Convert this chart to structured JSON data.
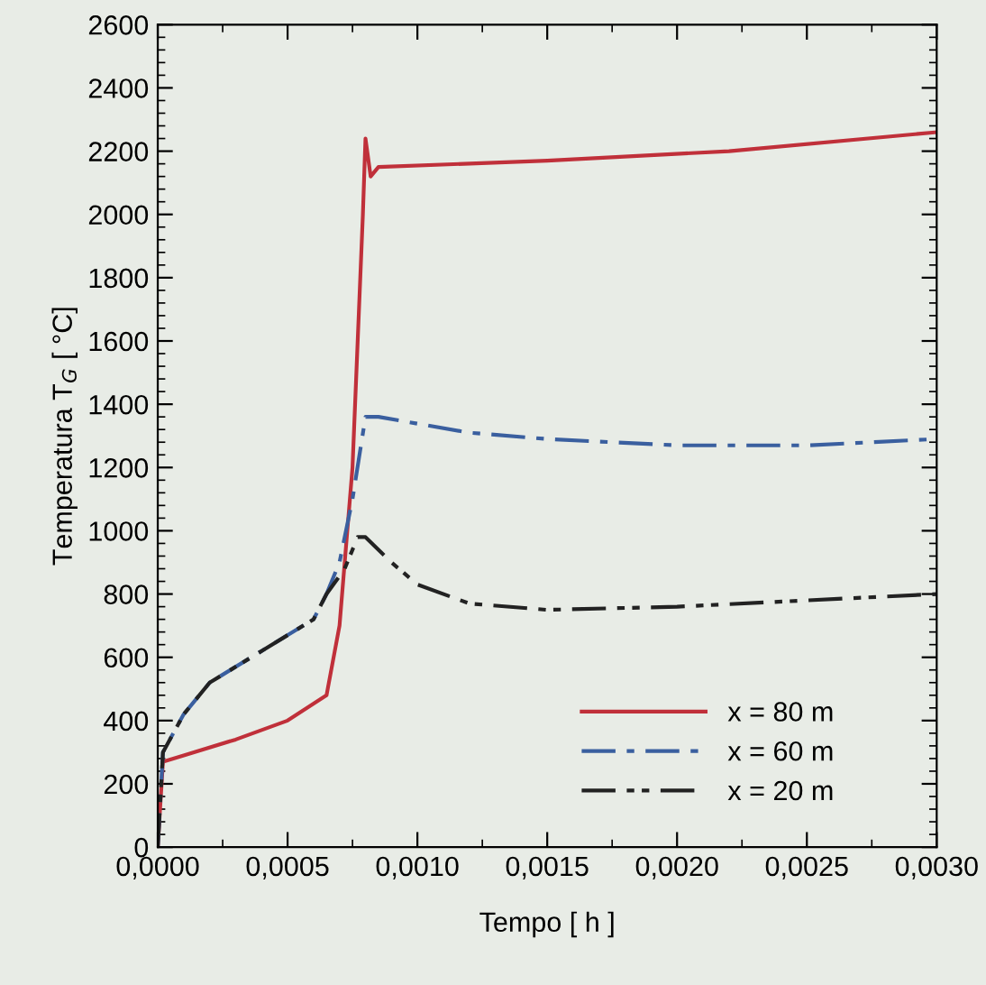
{
  "chart_data": {
    "type": "line",
    "xlabel": "Tempo [ h ]",
    "ylabel": "Temperatura T$_{G}$ [ °C]",
    "xlim": [
      0,
      0.003
    ],
    "ylim": [
      0,
      2600
    ],
    "xticks": [
      {
        "value": 0,
        "label": "0,0000"
      },
      {
        "value": 0.0005,
        "label": "0,0005"
      },
      {
        "value": 0.001,
        "label": "0,0010"
      },
      {
        "value": 0.0015,
        "label": "0,0015"
      },
      {
        "value": 0.002,
        "label": "0,0020"
      },
      {
        "value": 0.0025,
        "label": "0,0025"
      },
      {
        "value": 0.003,
        "label": "0,0030"
      }
    ],
    "yticks": [
      0,
      200,
      400,
      600,
      800,
      1000,
      1200,
      1400,
      1600,
      1800,
      2000,
      2200,
      2400,
      2600
    ],
    "grid": false,
    "legend": "bottom right",
    "marker": "none",
    "series": [
      {
        "name": "x = 80 m",
        "color": "#c0303a",
        "line_style": "solid",
        "x": [
          0,
          2e-05,
          0.0001,
          0.0003,
          0.0005,
          0.00065,
          0.0007,
          0.00075,
          0.00079,
          0.0008,
          0.00082,
          0.00085,
          0.0015,
          0.0022,
          0.003
        ],
        "values": [
          0,
          270,
          290,
          340,
          400,
          480,
          700,
          1200,
          2000,
          2240,
          2120,
          2150,
          2170,
          2200,
          2260
        ]
      },
      {
        "name": "x = 60 m",
        "color": "#3a5f9f",
        "line_style": "dashed",
        "x": [
          0,
          2e-05,
          0.0001,
          0.0002,
          0.0004,
          0.0006,
          0.00065,
          0.0007,
          0.00075,
          0.0008,
          0.00085,
          0.0012,
          0.0015,
          0.002,
          0.0025,
          0.003
        ],
        "values": [
          0,
          300,
          420,
          520,
          620,
          720,
          800,
          900,
          1100,
          1360,
          1360,
          1310,
          1290,
          1270,
          1270,
          1290
        ]
      },
      {
        "name": "x = 20 m",
        "color": "#222222",
        "line_style": "dotted",
        "x": [
          0,
          2e-05,
          0.0001,
          0.0002,
          0.0004,
          0.0006,
          0.00065,
          0.00072,
          0.00077,
          0.0008,
          0.0009,
          0.001,
          0.0012,
          0.0015,
          0.002,
          0.0025,
          0.003
        ],
        "values": [
          0,
          300,
          420,
          520,
          620,
          720,
          800,
          880,
          980,
          980,
          900,
          830,
          770,
          750,
          760,
          780,
          800
        ]
      }
    ]
  }
}
